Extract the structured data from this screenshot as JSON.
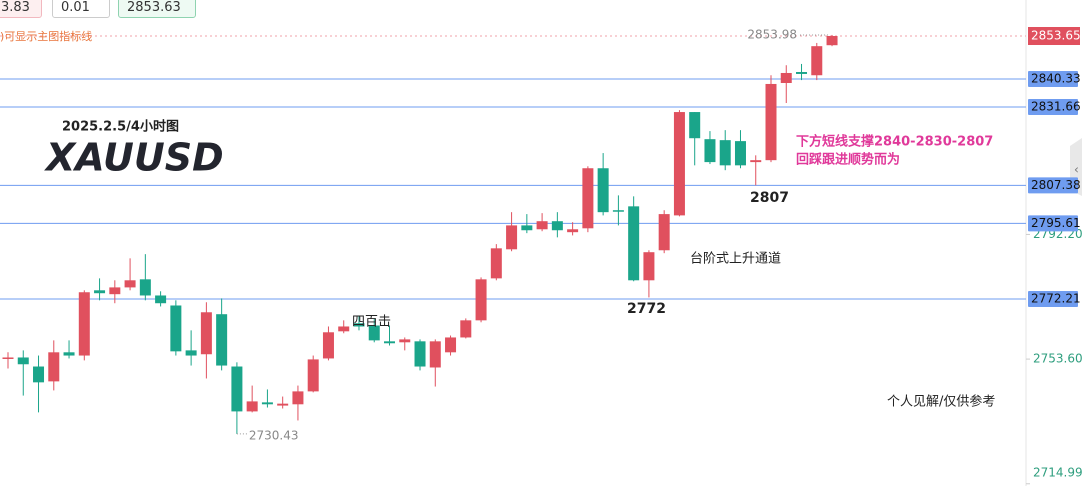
{
  "toolbar": {
    "sell": "3.83",
    "lots": "0.01",
    "buy": "2853.63",
    "hint": ")可显示主图指标线"
  },
  "chart_data": {
    "type": "candlestick",
    "title": "XAUUSD",
    "subtitle": "2025.2.5/4小时图",
    "annotations": [
      "下方短线支撑2840-2830-2807",
      "回踩跟进顺势而为",
      "2807",
      "台阶式上升通道",
      "2772",
      "四百击",
      "个人见解/仅供参考"
    ],
    "open": [
      2753.8,
      2754.1,
      2751.3,
      2746.7,
      2755.7,
      2754.7,
      2774.9,
      2773.7,
      2775.8,
      2778.3,
      2773.3,
      2770.2,
      2756.3,
      2755.1,
      2767.5,
      2751.3,
      2737.4,
      2740.2,
      2739.2,
      2739.6,
      2743.6,
      2753.8,
      2762.2,
      2764.7,
      2764.0,
      2759.1,
      2758.8,
      2759.1,
      2751.0,
      2755.7,
      2760.3,
      2765.6,
      2778.6,
      2787.6,
      2795.0,
      2793.8,
      2796.3,
      2792.9,
      2794.1,
      2812.7,
      2799.7,
      2800.9,
      2778.0,
      2787.3,
      2798.1,
      2830.1,
      2821.7,
      2821.4,
      2821.1,
      2814.6,
      2815.2,
      2839.1,
      2842.5,
      2841.5,
      2850.8
    ],
    "high": [
      2755.7,
      2756.3,
      2754.7,
      2759.4,
      2759.4,
      2774.9,
      2778.6,
      2778.0,
      2784.8,
      2786.1,
      2774.6,
      2771.8,
      2762.5,
      2771.2,
      2772.4,
      2752.6,
      2745.4,
      2744.2,
      2742.0,
      2745.4,
      2754.7,
      2763.7,
      2765.6,
      2766.8,
      2766.2,
      2764.0,
      2760.3,
      2759.7,
      2759.7,
      2760.9,
      2766.2,
      2778.9,
      2789.2,
      2799.1,
      2798.5,
      2798.8,
      2799.1,
      2796.0,
      2813.3,
      2817.4,
      2804.3,
      2804.0,
      2787.3,
      2799.7,
      2830.7,
      2830.1,
      2824.2,
      2824.5,
      2824.5,
      2816.7,
      2841.5,
      2844.6,
      2845.0,
      2851.5,
      2853.98
    ],
    "low": [
      2750.7,
      2742.3,
      2737.1,
      2743.9,
      2753.8,
      2753.2,
      2771.8,
      2770.9,
      2774.9,
      2771.8,
      2769.9,
      2754.7,
      2751.6,
      2747.6,
      2750.1,
      2730.43,
      2737.1,
      2738.6,
      2738.3,
      2734.6,
      2743.3,
      2753.2,
      2761.6,
      2762.5,
      2758.8,
      2757.8,
      2756.3,
      2750.1,
      2745.1,
      2754.7,
      2760.0,
      2765.0,
      2778.0,
      2787.0,
      2792.6,
      2793.2,
      2791.3,
      2791.9,
      2792.9,
      2798.1,
      2795.0,
      2777.7,
      2772.7,
      2786.4,
      2797.8,
      2813.6,
      2814.0,
      2812.1,
      2812.7,
      2807.4,
      2814.6,
      2832.9,
      2840.0,
      2840.0,
      2850.5
    ],
    "close": [
      2754.1,
      2752.0,
      2746.4,
      2755.7,
      2754.7,
      2774.3,
      2774.0,
      2775.8,
      2778.0,
      2773.3,
      2770.9,
      2756.0,
      2754.7,
      2768.1,
      2751.6,
      2737.4,
      2740.5,
      2739.6,
      2739.8,
      2743.6,
      2753.5,
      2761.9,
      2763.7,
      2763.7,
      2759.4,
      2758.5,
      2759.7,
      2751.3,
      2759.1,
      2760.3,
      2765.6,
      2778.3,
      2787.9,
      2795.0,
      2793.5,
      2796.3,
      2793.5,
      2793.8,
      2812.7,
      2799.1,
      2799.4,
      2778.0,
      2786.7,
      2798.5,
      2830.1,
      2822.0,
      2814.6,
      2813.6,
      2813.6,
      2815.2,
      2838.8,
      2842.2,
      2841.9,
      2850.5,
      2853.65
    ],
    "up_color": "#e0505e",
    "down_color": "#1aa58a",
    "levels": [
      2840.33,
      2831.66,
      2807.38,
      2795.61,
      2772.21
    ],
    "level_color": "#6f9cf0",
    "current_price": 2853.65,
    "current_color": "#e0505e",
    "ylim": [
      2714.3,
      2864.8
    ],
    "yticks": [
      {
        "value": 2792.2,
        "label": "2792.20"
      },
      {
        "value": 2753.6,
        "label": "2753.60"
      },
      2714.99
    ]
  }
}
